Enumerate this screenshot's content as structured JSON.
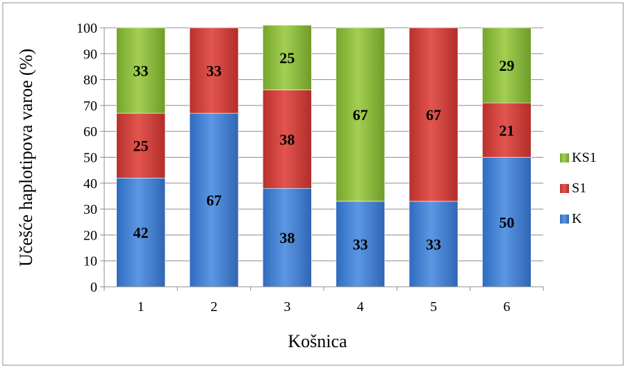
{
  "chart_data": {
    "type": "bar",
    "stacked": true,
    "title": "",
    "xlabel": "Košnica",
    "ylabel": "Učešće haplotipova varoe (%)",
    "ylim": [
      0,
      100
    ],
    "yticks": [
      0,
      10,
      20,
      30,
      40,
      50,
      60,
      70,
      80,
      90,
      100
    ],
    "grid": "horizontal",
    "legend_position": "right",
    "categories": [
      "1",
      "2",
      "3",
      "4",
      "5",
      "6"
    ],
    "series": [
      {
        "name": "K",
        "color": "#4a86d6",
        "values": [
          42,
          67,
          38,
          33,
          33,
          50
        ],
        "labels": [
          "42",
          "67",
          "38",
          "33",
          "33",
          "50"
        ]
      },
      {
        "name": "S1",
        "color": "#d9403b",
        "values": [
          25,
          33,
          38,
          0,
          67,
          21
        ],
        "labels": [
          "25",
          "33",
          "38",
          "",
          "67",
          "21"
        ]
      },
      {
        "name": "KS1",
        "color": "#8fbf3f",
        "values": [
          33,
          0,
          25,
          67,
          0,
          29
        ],
        "labels": [
          "33",
          "",
          "25",
          "67",
          "",
          "29"
        ]
      }
    ]
  }
}
